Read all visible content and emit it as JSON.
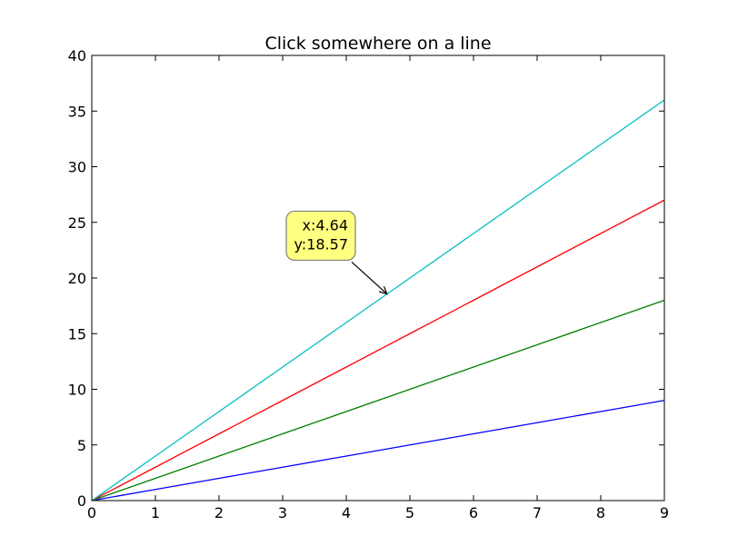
{
  "chart_data": {
    "type": "line",
    "title": "Click somewhere on a line",
    "xlabel": "",
    "ylabel": "",
    "xlim": [
      0,
      9
    ],
    "ylim": [
      0,
      40
    ],
    "x_ticks": [
      0,
      1,
      2,
      3,
      4,
      5,
      6,
      7,
      8,
      9
    ],
    "y_ticks": [
      0,
      5,
      10,
      15,
      20,
      25,
      30,
      35,
      40
    ],
    "x_tick_labels": [
      "0",
      "1",
      "2",
      "3",
      "4",
      "5",
      "6",
      "7",
      "8",
      "9"
    ],
    "y_tick_labels": [
      "0",
      "5",
      "10",
      "15",
      "20",
      "25",
      "30",
      "35",
      "40"
    ],
    "grid": false,
    "legend": "none",
    "x": [
      0,
      1,
      2,
      3,
      4,
      5,
      6,
      7,
      8,
      9
    ],
    "series": [
      {
        "color": "#0000ff",
        "values": [
          0,
          1,
          2,
          3,
          4,
          5,
          6,
          7,
          8,
          9
        ]
      },
      {
        "color": "#008000",
        "values": [
          0,
          2,
          4,
          6,
          8,
          10,
          12,
          14,
          16,
          18
        ]
      },
      {
        "color": "#ff0000",
        "values": [
          0,
          3,
          6,
          9,
          12,
          15,
          18,
          21,
          24,
          27
        ]
      },
      {
        "color": "#00bfbf",
        "values": [
          0,
          4,
          8,
          12,
          16,
          20,
          24,
          28,
          32,
          36
        ]
      }
    ],
    "annotation": {
      "line1": "x:4.64",
      "line2": "y:18.57",
      "point": [
        4.64,
        18.57
      ],
      "text_at": [
        3.6,
        23.8
      ],
      "box_color": "#ffff80",
      "border_color": "#808080"
    }
  }
}
